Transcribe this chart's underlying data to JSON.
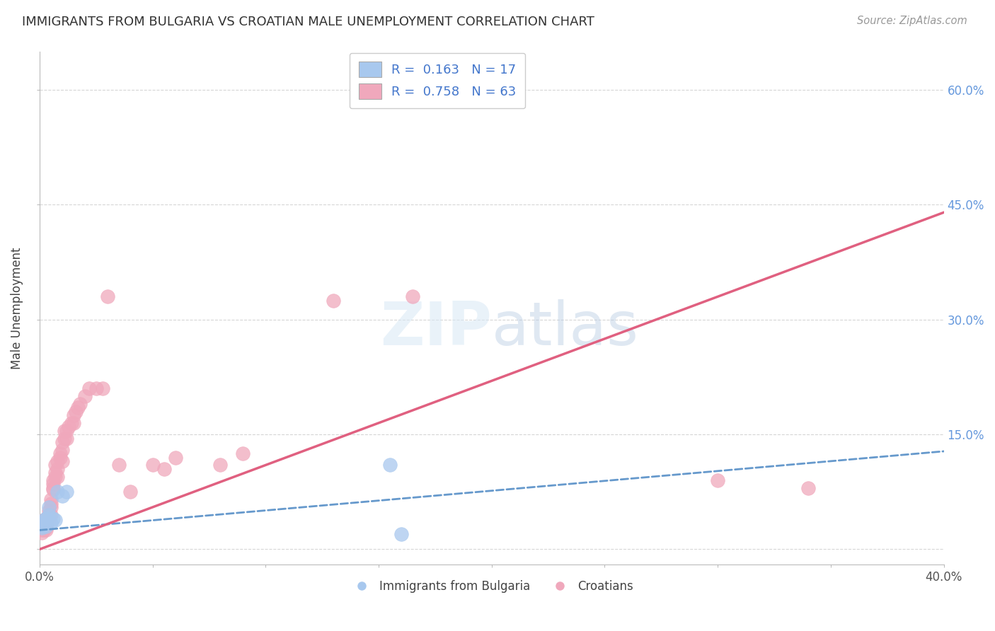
{
  "title": "IMMIGRANTS FROM BULGARIA VS CROATIAN MALE UNEMPLOYMENT CORRELATION CHART",
  "source": "Source: ZipAtlas.com",
  "ylabel": "Male Unemployment",
  "xlim": [
    0.0,
    0.4
  ],
  "ylim": [
    -0.02,
    0.65
  ],
  "yticks": [
    0.0,
    0.15,
    0.3,
    0.45,
    0.6
  ],
  "xticks": [
    0.0,
    0.05,
    0.1,
    0.15,
    0.2,
    0.25,
    0.3,
    0.35,
    0.4
  ],
  "xtick_labels_show": [
    "0.0%",
    "",
    "",
    "",
    "",
    "",
    "",
    "",
    "40.0%"
  ],
  "ytick_labels": [
    "",
    "15.0%",
    "30.0%",
    "45.0%",
    "60.0%"
  ],
  "bg_color": "#ffffff",
  "blue_color": "#a8c8ee",
  "pink_color": "#f0a8bc",
  "blue_line_color": "#6699cc",
  "pink_line_color": "#e06080",
  "blue_scatter_x": [
    0.001,
    0.001,
    0.002,
    0.002,
    0.002,
    0.003,
    0.003,
    0.004,
    0.004,
    0.005,
    0.006,
    0.007,
    0.008,
    0.01,
    0.012,
    0.155,
    0.16
  ],
  "blue_scatter_y": [
    0.03,
    0.028,
    0.035,
    0.032,
    0.038,
    0.03,
    0.04,
    0.055,
    0.045,
    0.035,
    0.04,
    0.038,
    0.075,
    0.07,
    0.075,
    0.11,
    0.02
  ],
  "pink_scatter_x": [
    0.001,
    0.001,
    0.001,
    0.001,
    0.002,
    0.002,
    0.002,
    0.002,
    0.002,
    0.003,
    0.003,
    0.003,
    0.003,
    0.003,
    0.004,
    0.004,
    0.004,
    0.005,
    0.005,
    0.005,
    0.005,
    0.006,
    0.006,
    0.006,
    0.006,
    0.007,
    0.007,
    0.007,
    0.008,
    0.008,
    0.008,
    0.009,
    0.009,
    0.01,
    0.01,
    0.01,
    0.011,
    0.011,
    0.012,
    0.012,
    0.013,
    0.014,
    0.015,
    0.015,
    0.016,
    0.017,
    0.018,
    0.02,
    0.022,
    0.025,
    0.028,
    0.03,
    0.035,
    0.04,
    0.05,
    0.055,
    0.06,
    0.08,
    0.09,
    0.13,
    0.165,
    0.3,
    0.34
  ],
  "pink_scatter_y": [
    0.025,
    0.03,
    0.028,
    0.022,
    0.03,
    0.028,
    0.032,
    0.038,
    0.025,
    0.028,
    0.032,
    0.035,
    0.04,
    0.025,
    0.038,
    0.045,
    0.05,
    0.06,
    0.065,
    0.055,
    0.045,
    0.08,
    0.085,
    0.09,
    0.078,
    0.095,
    0.1,
    0.11,
    0.105,
    0.095,
    0.115,
    0.12,
    0.125,
    0.13,
    0.115,
    0.14,
    0.145,
    0.155,
    0.145,
    0.155,
    0.16,
    0.165,
    0.165,
    0.175,
    0.18,
    0.185,
    0.19,
    0.2,
    0.21,
    0.21,
    0.21,
    0.33,
    0.11,
    0.075,
    0.11,
    0.105,
    0.12,
    0.11,
    0.125,
    0.325,
    0.33,
    0.09,
    0.08
  ],
  "pink_trendline_x0": 0.0,
  "pink_trendline_y0": 0.0,
  "pink_trendline_x1": 0.4,
  "pink_trendline_y1": 0.44,
  "blue_trendline_x0": 0.0,
  "blue_trendline_y0": 0.025,
  "blue_trendline_x1": 0.4,
  "blue_trendline_y1": 0.128
}
